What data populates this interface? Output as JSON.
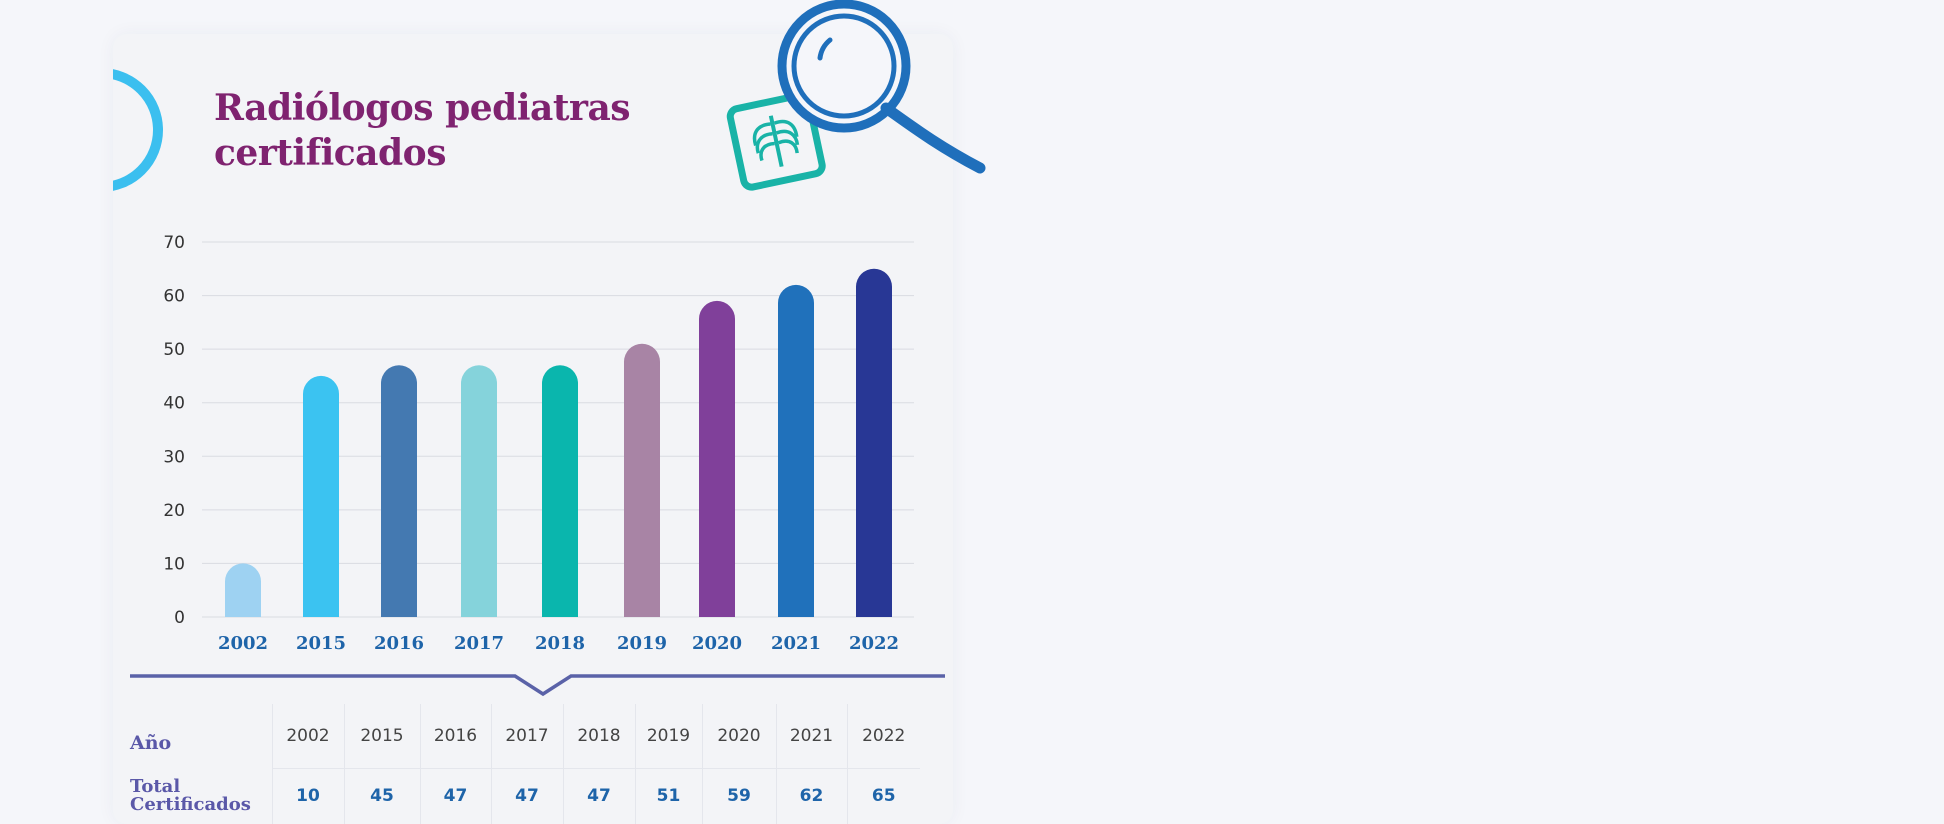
{
  "title": "Radiólogos pediatras certificados",
  "icons": [
    "xray-icon",
    "magnifier-icon"
  ],
  "colors": {
    "title": "#7f2370",
    "ring": "#3bbfef",
    "x_tick": "#1e64a9",
    "table_label": "#5a58a8",
    "bars": [
      "#9ed2f2",
      "#3bc3f1",
      "#4479b1",
      "#85d3db",
      "#0ab6ad",
      "#a884a5",
      "#80409a",
      "#2071bb",
      "#283795"
    ]
  },
  "chart_data": {
    "type": "bar",
    "title": "Radiólogos pediatras certificados",
    "categories": [
      "2002",
      "2015",
      "2016",
      "2017",
      "2018",
      "2019",
      "2020",
      "2021",
      "2022"
    ],
    "values": [
      10,
      45,
      47,
      47,
      47,
      51,
      59,
      62,
      65
    ],
    "ylim": [
      0,
      70
    ],
    "yticks": [
      "0",
      "10",
      "20",
      "30",
      "40",
      "50",
      "60",
      "70"
    ],
    "grid": true,
    "xlabel": "",
    "ylabel": ""
  },
  "table": {
    "year_label": "Año",
    "total_label": [
      "Total",
      "Certificados"
    ],
    "years": [
      "2002",
      "2015",
      "2016",
      "2017",
      "2018",
      "2019",
      "2020",
      "2021",
      "2022"
    ],
    "totals": [
      "10",
      "45",
      "47",
      "47",
      "47",
      "51",
      "59",
      "62",
      "65"
    ]
  }
}
